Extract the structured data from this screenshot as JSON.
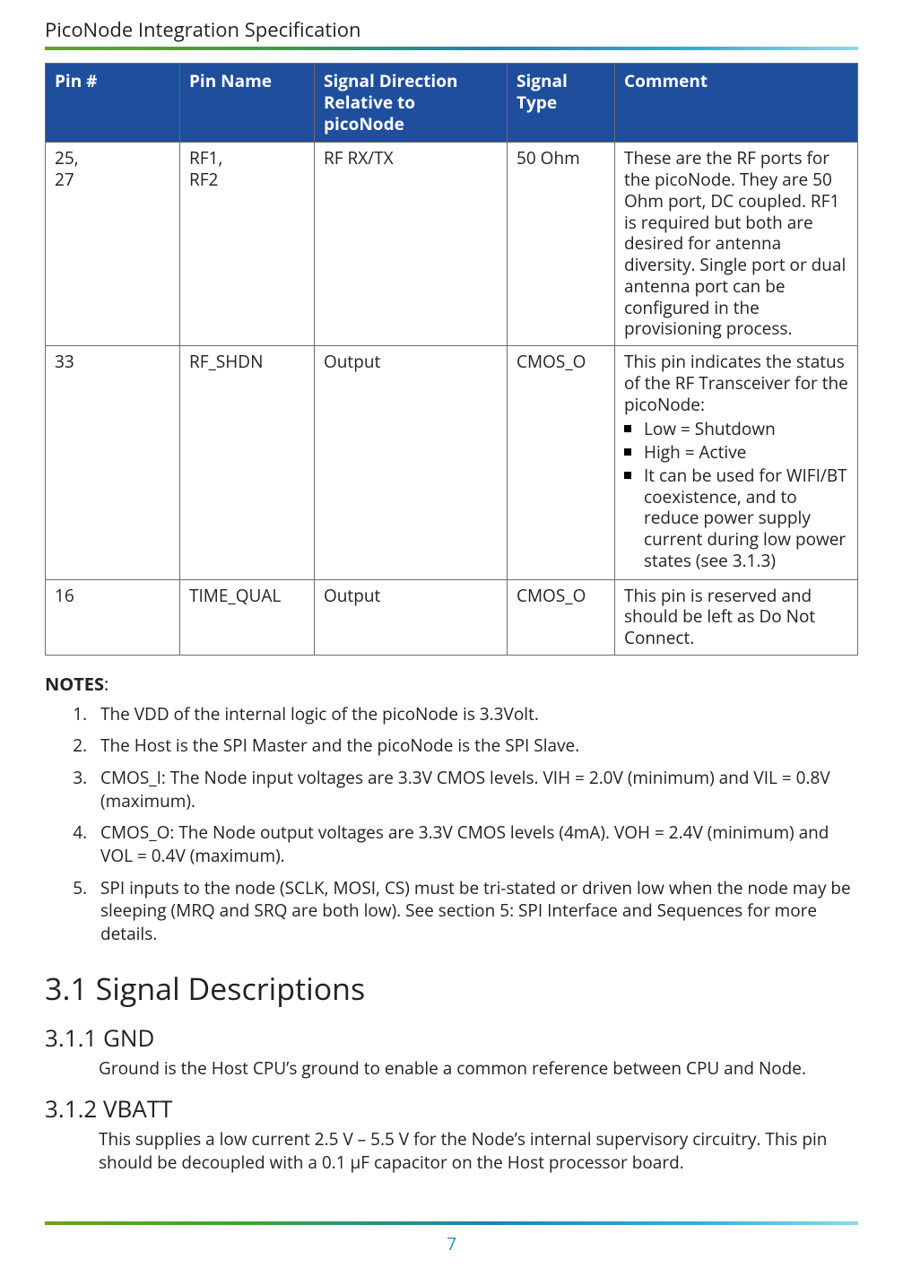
{
  "document": {
    "title": "PicoNode Integration Specification",
    "page_number": "7",
    "colors": {
      "table_header_bg": "#1f4e9c",
      "table_header_text": "#ffffff",
      "border": "#6b6b6b",
      "rule_gradient_start": "#6aa31c",
      "rule_gradient_end": "#8fd8e8",
      "pagenum": "#1f8bd0",
      "body_text": "#222222"
    }
  },
  "table": {
    "headers": {
      "pin": "Pin #",
      "name": "Pin Name",
      "direction_a": "Signal Direction",
      "direction_b": "Relative to picoNode",
      "type": "Signal Type",
      "comment": "Comment"
    },
    "rows": [
      {
        "pin_a": "25,",
        "pin_b": " 27",
        "name_a": "RF1,",
        "name_b": " RF2",
        "direction": "RF RX/TX",
        "type": "50 Ohm",
        "comment": "These are the RF ports for the picoNode. They are 50 Ohm port, DC coupled. RF1 is required but both are desired for antenna diversity. Single port or dual antenna port can be configured in the provisioning process."
      },
      {
        "pin": "33",
        "name": "RF_SHDN",
        "direction": "Output",
        "type": "CMOS_O",
        "comment_lead": "This pin indicates the status of the RF Transceiver for the picoNode:",
        "bullets": [
          "Low = Shutdown",
          "High = Active",
          "It can be used for WIFI/BT coexistence, and to reduce power supply current during low power states (see 3.1.3)"
        ]
      },
      {
        "pin": "16",
        "name": "TIME_QUAL",
        "direction": "Output",
        "type": "CMOS_O",
        "comment": "This pin is reserved and should be left as Do Not Connect."
      }
    ]
  },
  "notes": {
    "label": "NOTES",
    "items": [
      "The VDD of the internal logic of the picoNode is 3.3Volt.",
      "The Host is the SPI Master and the picoNode is the SPI Slave.",
      "CMOS_I:  The Node input voltages are 3.3V CMOS levels. VIH = 2.0V (minimum) and VIL = 0.8V (maximum).",
      "CMOS_O:  The Node output voltages are 3.3V CMOS levels (4mA). VOH = 2.4V (minimum) and VOL = 0.4V (maximum).",
      "SPI inputs to the node (SCLK, MOSI, CS) must be tri-stated or driven low when the node may be sleeping (MRQ and SRQ are both low). See section 5: SPI Interface and Sequences for more details."
    ]
  },
  "sections": {
    "s31": "3.1 Signal Descriptions",
    "s311_title": "3.1.1 GND",
    "s311_body": "Ground is the Host CPU’s ground to enable a common reference between CPU and Node.",
    "s312_title": "3.1.2 VBATT",
    "s312_body": "This supplies a low current 2.5 V – 5.5 V for the Node’s internal supervisory circuitry. This pin should be decoupled with a 0.1 µF capacitor on the Host processor board."
  }
}
